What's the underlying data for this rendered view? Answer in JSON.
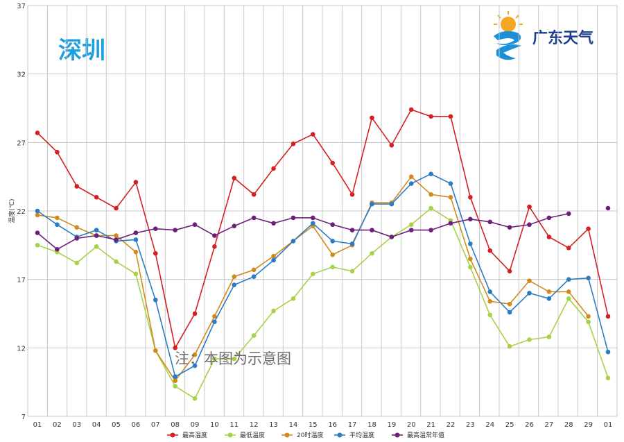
{
  "city": "深圳",
  "brand": "广东天气",
  "note": "注：本图为示意图",
  "chart_data": {
    "type": "line",
    "ylabel": "温度(℃)",
    "ylim": [
      7,
      37
    ],
    "yticks": [
      7,
      12,
      17,
      22,
      27,
      32,
      37
    ],
    "grid": true,
    "legend_position": "bottom",
    "categories": [
      "01",
      "02",
      "03",
      "04",
      "05",
      "06",
      "07",
      "08",
      "09",
      "10",
      "11",
      "12",
      "13",
      "14",
      "15",
      "16",
      "17",
      "18",
      "19",
      "20",
      "21",
      "22",
      "23",
      "24",
      "25",
      "26",
      "27",
      "28",
      "29",
      "01"
    ],
    "series": [
      {
        "name": "最高温度",
        "color": "#d42020",
        "values": [
          27.7,
          26.3,
          23.8,
          23.0,
          22.2,
          24.1,
          18.9,
          12.0,
          14.5,
          19.4,
          24.4,
          23.2,
          25.1,
          26.9,
          27.6,
          25.5,
          23.2,
          28.8,
          26.8,
          29.4,
          28.9,
          28.9,
          23.0,
          19.1,
          17.6,
          22.3,
          20.1,
          19.3,
          20.7,
          14.3
        ]
      },
      {
        "name": "最低温度",
        "color": "#a8d14a",
        "values": [
          19.5,
          19.0,
          18.2,
          19.4,
          18.3,
          17.4,
          11.8,
          9.2,
          8.3,
          11.2,
          11.2,
          12.9,
          14.7,
          15.6,
          17.4,
          17.9,
          17.6,
          18.9,
          20.1,
          21.0,
          22.2,
          21.3,
          17.9,
          14.4,
          12.1,
          12.6,
          12.8,
          15.6,
          13.9,
          9.8
        ]
      },
      {
        "name": "20时温度",
        "color": "#d08a1e",
        "values": [
          21.7,
          21.5,
          20.8,
          20.2,
          20.2,
          19.0,
          11.8,
          9.6,
          11.5,
          14.3,
          17.2,
          17.7,
          18.7,
          19.8,
          20.9,
          18.8,
          19.5,
          22.6,
          22.6,
          24.5,
          23.2,
          23.0,
          18.5,
          15.4,
          15.2,
          16.9,
          16.1,
          16.1,
          14.3,
          null
        ]
      },
      {
        "name": "平均温度",
        "color": "#2b7bc4",
        "values": [
          22.0,
          21.0,
          20.1,
          20.6,
          19.8,
          19.9,
          15.5,
          9.9,
          10.7,
          13.9,
          16.6,
          17.2,
          18.4,
          19.8,
          21.1,
          19.8,
          19.6,
          22.5,
          22.5,
          24.0,
          24.7,
          24.0,
          19.6,
          16.1,
          14.6,
          16.0,
          15.6,
          17.0,
          17.1,
          11.7
        ]
      },
      {
        "name": "最高温常年值",
        "color": "#6e1f7a",
        "values": [
          20.4,
          19.2,
          20.0,
          20.2,
          19.9,
          20.4,
          20.7,
          20.6,
          21.0,
          20.2,
          20.9,
          21.5,
          21.1,
          21.5,
          21.5,
          21.0,
          20.6,
          20.6,
          20.1,
          20.6,
          20.6,
          21.1,
          21.4,
          21.2,
          20.8,
          21.0,
          21.5,
          21.8,
          null,
          22.2
        ]
      }
    ]
  }
}
